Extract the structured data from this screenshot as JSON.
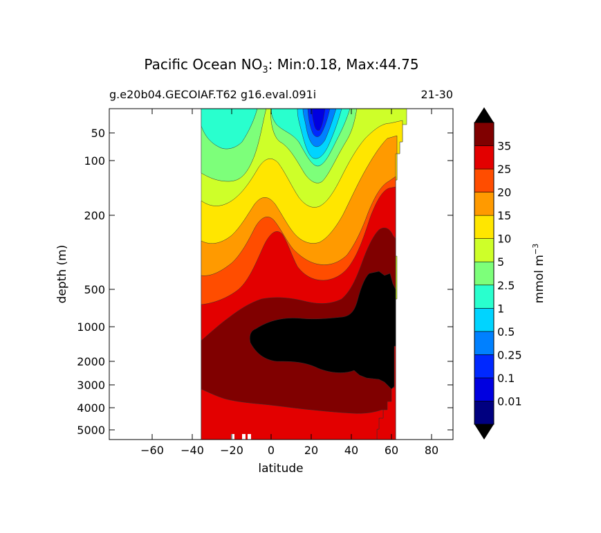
{
  "chart_data": {
    "type": "contour",
    "title_prefix": "Pacific Ocean NO",
    "title_subscript": "3",
    "title_suffix": ": Min:0.18, Max:44.75",
    "subtitle_left": "g.e20b04.GECOIAF.T62 g16.eval.091i",
    "subtitle_right": "21-30",
    "xlabel": "latitude",
    "ylabel": "depth (m)",
    "x_ticks": [
      "−60",
      "−40",
      "−20",
      "0",
      "20",
      "40",
      "60",
      "80"
    ],
    "y_ticks": [
      "50",
      "100",
      "200",
      "500",
      "1000",
      "2000",
      "3000",
      "4000",
      "5000"
    ],
    "xlim": [
      -80,
      90
    ],
    "colorbar": {
      "unit_prefix": "mmol m",
      "unit_sup": "−3",
      "labels": [
        "0.01",
        "0.1",
        "0.25",
        "0.5",
        "1",
        "2.5",
        "5",
        "10",
        "15",
        "20",
        "25",
        "35"
      ],
      "levels": [
        "<0.01",
        "0.01-0.1",
        "0.1-0.25",
        "0.25-0.5",
        "0.5-1",
        "1-2.5",
        "2.5-5",
        "5-10",
        "10-15",
        "15-20",
        "20-25",
        "25-35",
        ">35"
      ],
      "colors": [
        "#000080",
        "#0000e0",
        "#0028ff",
        "#0080ff",
        "#00d4ff",
        "#29ffce",
        "#7dff7a",
        "#ceff29",
        "#ffe600",
        "#ff9a00",
        "#ff4d00",
        "#e30000",
        "#800000",
        "#000000"
      ]
    }
  }
}
